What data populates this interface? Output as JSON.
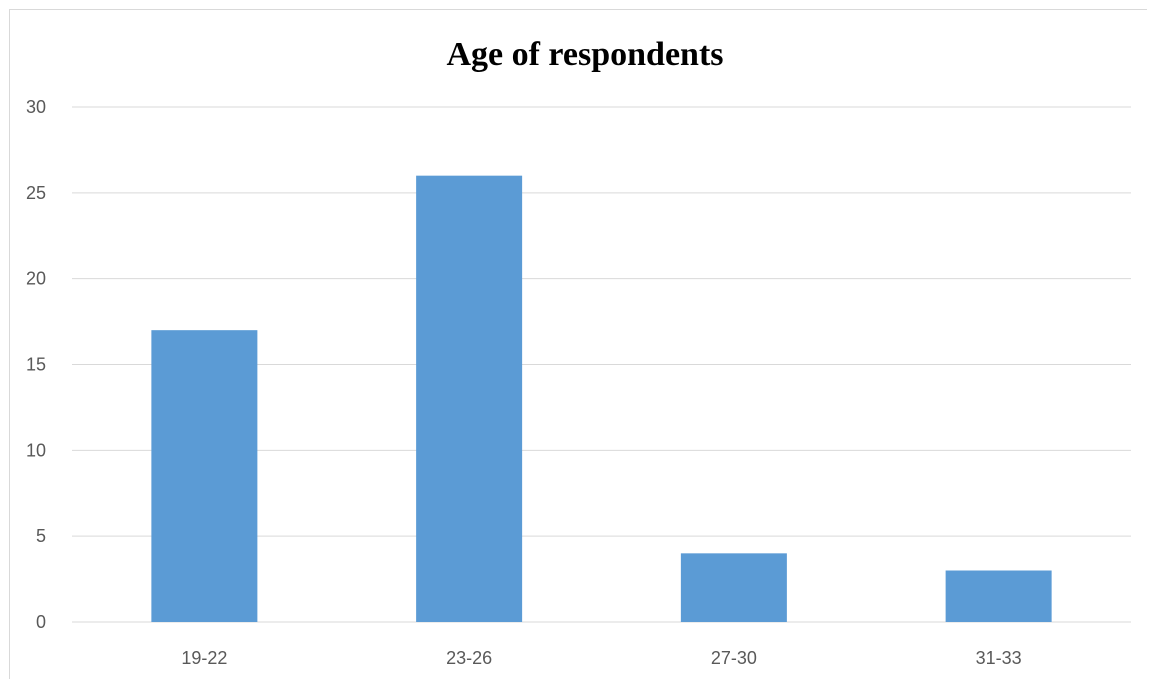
{
  "chart_data": {
    "type": "bar",
    "title": "Age of respondents",
    "xlabel": "",
    "ylabel": "",
    "categories": [
      "19-22",
      "23-26",
      "27-30",
      "31-33"
    ],
    "values": [
      17,
      26,
      4,
      3
    ],
    "ylim": [
      0,
      30
    ],
    "yticks": [
      0,
      5,
      10,
      15,
      20,
      25,
      30
    ],
    "grid": true,
    "legend": "none",
    "colors": {
      "bar": "#5b9bd5",
      "grid": "#d9d9d9",
      "axis": "#d9d9d9",
      "tick_text": "#595959",
      "title_text": "#000000"
    }
  }
}
